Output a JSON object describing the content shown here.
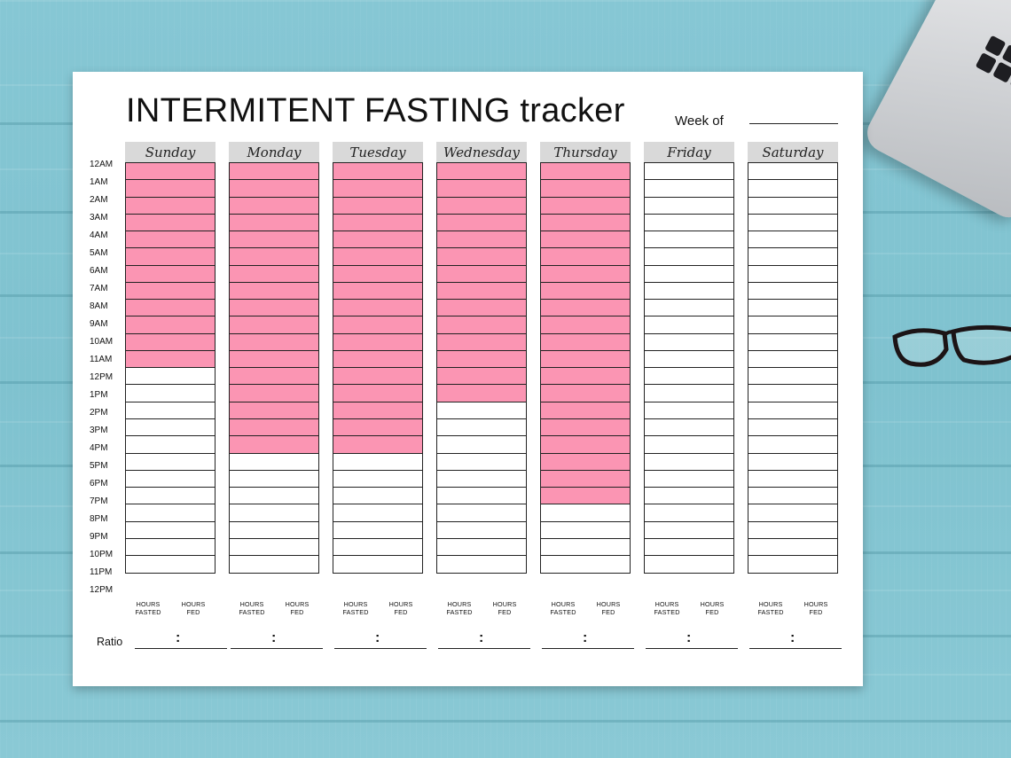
{
  "tracker": {
    "title": "INTERMITENT FASTING tracker",
    "week_label": "Week of",
    "ratio_label": "Ratio",
    "ratio_separator": ":",
    "hours_fasted_label": [
      "HOURS",
      "FASTED"
    ],
    "hours_fed_label": [
      "HOURS",
      "FED"
    ],
    "fill_color": "#fb95b3",
    "header_color": "#d9d9d9",
    "time_labels": [
      "12AM",
      "1AM",
      "2AM",
      "3AM",
      "4AM",
      "5AM",
      "6AM",
      "7AM",
      "8AM",
      "9AM",
      "10AM",
      "11AM",
      "12PM",
      "1PM",
      "2PM",
      "3PM",
      "4PM",
      "5PM",
      "6PM",
      "7PM",
      "8PM",
      "9PM",
      "10PM",
      "11PM",
      "12PM"
    ],
    "days": [
      {
        "name": "Sunday",
        "filled_hours": 12
      },
      {
        "name": "Monday",
        "filled_hours": 17
      },
      {
        "name": "Tuesday",
        "filled_hours": 17
      },
      {
        "name": "Wednesday",
        "filled_hours": 14
      },
      {
        "name": "Thursday",
        "filled_hours": 20
      },
      {
        "name": "Friday",
        "filled_hours": 0
      },
      {
        "name": "Saturday",
        "filled_hours": 0
      }
    ]
  }
}
